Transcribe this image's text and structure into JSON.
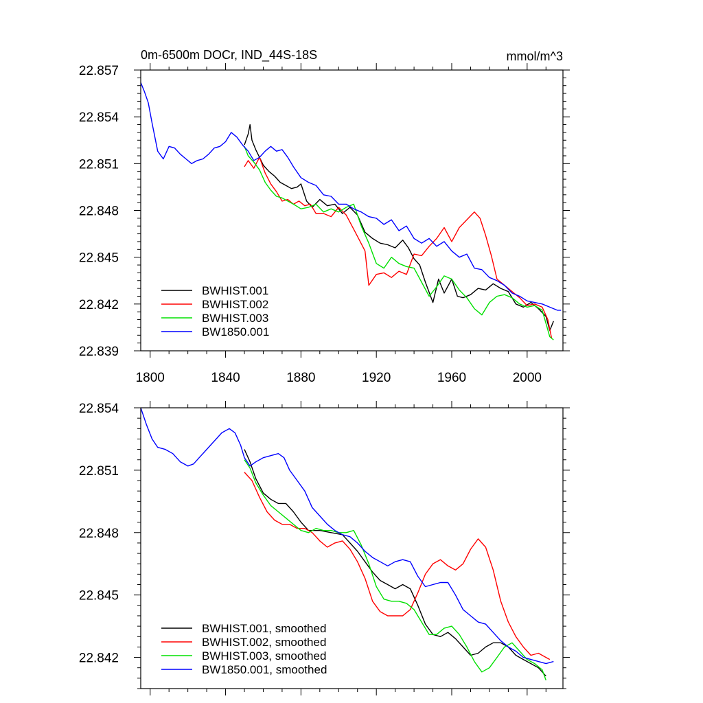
{
  "chart_data": [
    {
      "type": "line",
      "title": "0m-6500m DOCr, IND_44S-18S",
      "units": "mmol/m^3",
      "xlim": [
        1795,
        2019
      ],
      "ylim": [
        22.839,
        22.857
      ],
      "xticks": [
        1800,
        1840,
        1880,
        1920,
        1960,
        2000
      ],
      "yticks": [
        22.839,
        22.842,
        22.845,
        22.848,
        22.851,
        22.854,
        22.857
      ],
      "ytick_labels": [
        "22.839",
        "22.842",
        "22.845",
        "22.848",
        "22.851",
        "22.854",
        "22.857"
      ],
      "xtick_labels": [
        "1800",
        "1840",
        "1880",
        "1920",
        "1960",
        "2000"
      ],
      "legend_position": "bottom-left",
      "series": [
        {
          "name": "BWHIST.001",
          "color": "#000000",
          "x": [
            1850,
            1852,
            1853,
            1854,
            1856,
            1858,
            1860,
            1863,
            1866,
            1869,
            1872,
            1875,
            1878,
            1880,
            1883,
            1886,
            1890,
            1894,
            1898,
            1902,
            1906,
            1910,
            1914,
            1918,
            1922,
            1926,
            1930,
            1934,
            1937,
            1940,
            1943,
            1946,
            1950,
            1953,
            1956,
            1960,
            1963,
            1966,
            1970,
            1974,
            1978,
            1982,
            1986,
            1990,
            1994,
            1998,
            2002,
            2006,
            2010,
            2012,
            2014
          ],
          "y": [
            22.8522,
            22.8529,
            22.8535,
            22.8525,
            22.8519,
            22.8514,
            22.8509,
            22.8505,
            22.8502,
            22.8498,
            22.8496,
            22.8494,
            22.8495,
            22.8497,
            22.8486,
            22.8482,
            22.8487,
            22.8483,
            22.8484,
            22.8478,
            22.8482,
            22.8477,
            22.8466,
            22.8462,
            22.8459,
            22.8458,
            22.8456,
            22.8461,
            22.8456,
            22.8449,
            22.8445,
            22.8434,
            22.8421,
            22.8436,
            22.8427,
            22.8436,
            22.8425,
            22.8424,
            22.8426,
            22.843,
            22.8429,
            22.8433,
            22.843,
            22.8428,
            22.842,
            22.8418,
            22.8421,
            22.8417,
            22.8412,
            22.8403,
            22.8409
          ]
        },
        {
          "name": "BWHIST.002",
          "color": "#ff0000",
          "x": [
            1850,
            1852,
            1855,
            1858,
            1861,
            1864,
            1867,
            1870,
            1873,
            1876,
            1879,
            1882,
            1885,
            1888,
            1892,
            1896,
            1900,
            1904,
            1908,
            1911,
            1914,
            1916,
            1920,
            1924,
            1928,
            1932,
            1936,
            1940,
            1944,
            1948,
            1952,
            1956,
            1960,
            1964,
            1968,
            1972,
            1975,
            1978,
            1981,
            1984,
            1988,
            1992,
            1996,
            2000,
            2004,
            2008,
            2011,
            2013
          ],
          "y": [
            22.8508,
            22.8512,
            22.8507,
            22.8514,
            22.8504,
            22.8497,
            22.8492,
            22.8486,
            22.8487,
            22.8484,
            22.8486,
            22.8483,
            22.8484,
            22.8478,
            22.8478,
            22.8476,
            22.8482,
            22.8477,
            22.8468,
            22.8461,
            22.8454,
            22.8432,
            22.8439,
            22.844,
            22.8437,
            22.8441,
            22.8439,
            22.8452,
            22.8451,
            22.8457,
            22.8462,
            22.8469,
            22.846,
            22.8469,
            22.8474,
            22.8479,
            22.8475,
            22.8464,
            22.8451,
            22.8436,
            22.8432,
            22.8428,
            22.8424,
            22.8419,
            22.842,
            22.8418,
            22.841,
            22.8398
          ]
        },
        {
          "name": "BWHIST.003",
          "color": "#00e000",
          "x": [
            1850,
            1852,
            1855,
            1858,
            1861,
            1864,
            1867,
            1870,
            1873,
            1876,
            1880,
            1884,
            1888,
            1892,
            1896,
            1900,
            1904,
            1908,
            1912,
            1916,
            1920,
            1924,
            1928,
            1932,
            1936,
            1940,
            1944,
            1948,
            1952,
            1956,
            1960,
            1964,
            1968,
            1972,
            1976,
            1980,
            1984,
            1988,
            1992,
            1996,
            2000,
            2004,
            2008,
            2012,
            2014
          ],
          "y": [
            22.8521,
            22.8515,
            22.8511,
            22.8506,
            22.8498,
            22.8493,
            22.8489,
            22.8488,
            22.8486,
            22.8484,
            22.8481,
            22.8482,
            22.8484,
            22.8479,
            22.8481,
            22.8479,
            22.8482,
            22.8484,
            22.847,
            22.8459,
            22.8446,
            22.8443,
            22.845,
            22.8446,
            22.8444,
            22.8443,
            22.8434,
            22.8425,
            22.8431,
            22.8438,
            22.8436,
            22.8429,
            22.8424,
            22.8417,
            22.8413,
            22.8421,
            22.8425,
            22.8426,
            22.8424,
            22.842,
            22.8418,
            22.8419,
            22.8416,
            22.8399,
            22.8397
          ]
        },
        {
          "name": "BW1850.001",
          "color": "#0000ff",
          "x": [
            1795,
            1797,
            1799,
            1801,
            1804,
            1807,
            1810,
            1813,
            1816,
            1819,
            1822,
            1825,
            1828,
            1831,
            1834,
            1837,
            1840,
            1843,
            1846,
            1849,
            1852,
            1855,
            1858,
            1861,
            1864,
            1867,
            1870,
            1873,
            1876,
            1880,
            1884,
            1888,
            1892,
            1896,
            1900,
            1904,
            1908,
            1912,
            1916,
            1920,
            1924,
            1928,
            1932,
            1936,
            1940,
            1944,
            1948,
            1952,
            1956,
            1960,
            1964,
            1968,
            1972,
            1976,
            1980,
            1984,
            1988,
            1992,
            1996,
            2000,
            2004,
            2008,
            2012,
            2016,
            2018
          ],
          "y": [
            22.8562,
            22.8556,
            22.8549,
            22.8536,
            22.8518,
            22.8513,
            22.8521,
            22.852,
            22.8516,
            22.8513,
            22.851,
            22.8512,
            22.8513,
            22.8516,
            22.852,
            22.8521,
            22.8524,
            22.853,
            22.8527,
            22.8522,
            22.8518,
            22.8512,
            22.8514,
            22.8518,
            22.8521,
            22.8518,
            22.8519,
            22.8514,
            22.8508,
            22.8501,
            22.8498,
            22.8496,
            22.849,
            22.8489,
            22.8484,
            22.8484,
            22.8481,
            22.8479,
            22.8476,
            22.8475,
            22.8471,
            22.8474,
            22.8467,
            22.847,
            22.8462,
            22.8459,
            22.8462,
            22.8457,
            22.846,
            22.8454,
            22.845,
            22.8452,
            22.8443,
            22.8442,
            22.8437,
            22.8435,
            22.8432,
            22.8427,
            22.8425,
            22.8422,
            22.8421,
            22.842,
            22.8418,
            22.8416,
            22.8416
          ]
        }
      ]
    },
    {
      "type": "line",
      "xlim": [
        1795,
        2019
      ],
      "ylim": [
        22.8405,
        22.854
      ],
      "xticks": [
        1800,
        1840,
        1880,
        1920,
        1960,
        2000
      ],
      "yticks": [
        22.842,
        22.845,
        22.848,
        22.851,
        22.854
      ],
      "ytick_labels": [
        "22.842",
        "22.845",
        "22.848",
        "22.851",
        "22.854"
      ],
      "legend_position": "bottom-left",
      "series": [
        {
          "name": "BWHIST.001, smoothed",
          "color": "#000000",
          "x": [
            1850,
            1853,
            1856,
            1860,
            1864,
            1868,
            1872,
            1876,
            1880,
            1884,
            1890,
            1896,
            1902,
            1906,
            1910,
            1914,
            1918,
            1922,
            1926,
            1930,
            1934,
            1938,
            1942,
            1946,
            1950,
            1954,
            1958,
            1962,
            1966,
            1970,
            1974,
            1978,
            1982,
            1986,
            1990,
            1994,
            1998,
            2002,
            2006,
            2010
          ],
          "y": [
            22.852,
            22.8514,
            22.8506,
            22.8499,
            22.8496,
            22.8494,
            22.8494,
            22.849,
            22.8485,
            22.8481,
            22.8481,
            22.848,
            22.8479,
            22.8475,
            22.8471,
            22.8466,
            22.8461,
            22.8457,
            22.8455,
            22.8453,
            22.8455,
            22.8453,
            22.8445,
            22.8436,
            22.8431,
            22.843,
            22.8432,
            22.8429,
            22.8425,
            22.8421,
            22.8422,
            22.8425,
            22.8427,
            22.8427,
            22.8425,
            22.8421,
            22.8419,
            22.8417,
            22.8415,
            22.8411
          ]
        },
        {
          "name": "BWHIST.002, smoothed",
          "color": "#ff0000",
          "x": [
            1850,
            1854,
            1858,
            1862,
            1866,
            1870,
            1874,
            1878,
            1882,
            1886,
            1890,
            1894,
            1898,
            1902,
            1906,
            1910,
            1914,
            1918,
            1922,
            1926,
            1930,
            1934,
            1938,
            1942,
            1946,
            1950,
            1954,
            1958,
            1962,
            1966,
            1970,
            1974,
            1978,
            1982,
            1986,
            1990,
            1994,
            1998,
            2002,
            2006,
            2010,
            2012
          ],
          "y": [
            22.8509,
            22.8505,
            22.8497,
            22.849,
            22.8486,
            22.8484,
            22.8484,
            22.8482,
            22.8482,
            22.848,
            22.8476,
            22.8473,
            22.8475,
            22.8476,
            22.8472,
            22.8466,
            22.8458,
            22.8447,
            22.8442,
            22.844,
            22.844,
            22.844,
            22.8443,
            22.8451,
            22.846,
            22.8465,
            22.8467,
            22.8464,
            22.8462,
            22.8465,
            22.8472,
            22.8477,
            22.8473,
            22.8462,
            22.8447,
            22.8437,
            22.843,
            22.8425,
            22.8421,
            22.8422,
            22.842,
            22.8419
          ]
        },
        {
          "name": "BWHIST.003, smoothed",
          "color": "#00e000",
          "x": [
            1850,
            1853,
            1856,
            1860,
            1864,
            1868,
            1872,
            1876,
            1880,
            1884,
            1888,
            1892,
            1896,
            1900,
            1904,
            1908,
            1912,
            1916,
            1920,
            1924,
            1928,
            1932,
            1936,
            1940,
            1944,
            1948,
            1952,
            1956,
            1960,
            1964,
            1968,
            1972,
            1976,
            1980,
            1984,
            1988,
            1992,
            1996,
            2000,
            2004,
            2008,
            2010
          ],
          "y": [
            22.8515,
            22.8511,
            22.8504,
            22.8498,
            22.8493,
            22.849,
            22.8487,
            22.8484,
            22.8481,
            22.848,
            22.8482,
            22.8481,
            22.8481,
            22.848,
            22.848,
            22.8481,
            22.8474,
            22.8465,
            22.8454,
            22.8448,
            22.8447,
            22.8447,
            22.8446,
            22.8443,
            22.8437,
            22.8431,
            22.8431,
            22.8434,
            22.8435,
            22.8431,
            22.8425,
            22.8418,
            22.8413,
            22.8415,
            22.842,
            22.8425,
            22.8427,
            22.8423,
            22.8419,
            22.8417,
            22.8414,
            22.8409
          ]
        },
        {
          "name": "BW1850.001, smoothed",
          "color": "#0000ff",
          "x": [
            1795,
            1798,
            1801,
            1804,
            1808,
            1812,
            1816,
            1820,
            1823,
            1826,
            1830,
            1834,
            1838,
            1842,
            1845,
            1848,
            1850,
            1853,
            1856,
            1860,
            1864,
            1868,
            1871,
            1874,
            1878,
            1882,
            1886,
            1890,
            1894,
            1898,
            1902,
            1906,
            1910,
            1914,
            1918,
            1922,
            1926,
            1930,
            1934,
            1938,
            1942,
            1946,
            1950,
            1954,
            1958,
            1962,
            1966,
            1970,
            1974,
            1978,
            1982,
            1986,
            1990,
            1994,
            1998,
            2002,
            2006,
            2010,
            2014
          ],
          "y": [
            22.854,
            22.8532,
            22.8525,
            22.8521,
            22.852,
            22.8518,
            22.8514,
            22.8512,
            22.8513,
            22.8516,
            22.852,
            22.8524,
            22.8528,
            22.853,
            22.8528,
            22.8522,
            22.8516,
            22.8512,
            22.8514,
            22.8516,
            22.8517,
            22.8518,
            22.8516,
            22.851,
            22.8505,
            22.85,
            22.8492,
            22.8488,
            22.8484,
            22.8481,
            22.8479,
            22.8478,
            22.8475,
            22.8471,
            22.8468,
            22.8466,
            22.8464,
            22.8466,
            22.8467,
            22.8466,
            22.8459,
            22.8454,
            22.8455,
            22.8456,
            22.8456,
            22.845,
            22.8443,
            22.844,
            22.8437,
            22.8436,
            22.8432,
            22.8428,
            22.8425,
            22.8423,
            22.842,
            22.8419,
            22.8418,
            22.8417,
            22.8418
          ]
        }
      ]
    }
  ]
}
